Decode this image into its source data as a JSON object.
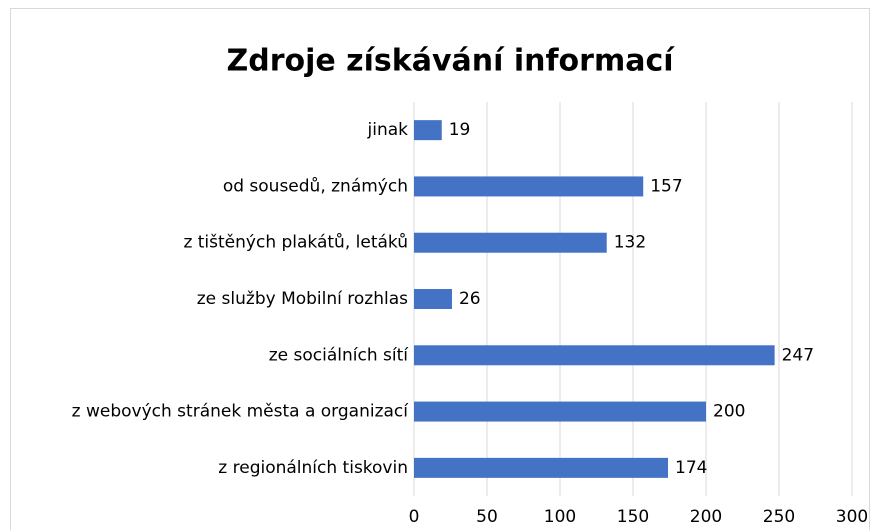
{
  "chart_data": {
    "type": "bar",
    "orientation": "horizontal",
    "title": "Zdroje získávání informací",
    "categories": [
      "jinak",
      "od sousedů, známých",
      "z tištěných plakátů, letáků",
      "ze služby Mobilní rozhlas",
      "ze sociálních sítí",
      "z webových stránek města a organizací",
      "z regionálních tiskovin"
    ],
    "values": [
      19,
      157,
      132,
      26,
      247,
      200,
      174
    ],
    "color": "#4472c4",
    "xlim": [
      0,
      300
    ],
    "xticks": [
      0,
      50,
      100,
      150,
      200,
      250,
      300
    ],
    "grid": true
  }
}
